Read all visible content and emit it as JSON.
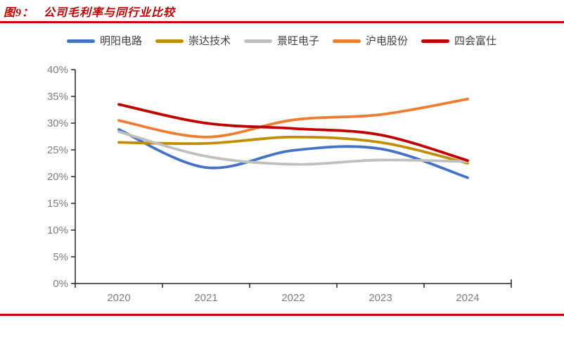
{
  "figure": {
    "label": "图9：",
    "title": "公司毛利率与同行业比较"
  },
  "colors": {
    "accent": "#C00000",
    "axis": "#262626",
    "tick_label": "#7F7F7F",
    "legend_text": "#404040",
    "card_background": "#FFFFFF"
  },
  "chart_data": {
    "type": "line",
    "smooth": true,
    "title": "公司毛利率与同行业比较",
    "categories": [
      "2020",
      "2021",
      "2022",
      "2023",
      "2024"
    ],
    "series": [
      {
        "name": "明阳电路",
        "color": "#4472C4",
        "values": [
          28.8,
          21.7,
          24.9,
          25.2,
          19.8
        ]
      },
      {
        "name": "崇达技术",
        "color": "#BF8F00",
        "values": [
          26.4,
          26.2,
          27.4,
          26.4,
          22.5
        ]
      },
      {
        "name": "景旺电子",
        "color": "#BFBFBF",
        "values": [
          28.4,
          23.8,
          22.3,
          23.1,
          22.8
        ]
      },
      {
        "name": "沪电股份",
        "color": "#ED7D31",
        "values": [
          30.5,
          27.4,
          30.6,
          31.6,
          34.5
        ]
      },
      {
        "name": "四会富仕",
        "color": "#C00000",
        "values": [
          33.5,
          30.0,
          29.0,
          27.8,
          23.0
        ]
      }
    ],
    "xlabel": "",
    "ylabel": "",
    "ylim": [
      0,
      40
    ],
    "ytick_step": 5,
    "ytick_labels": [
      "0%",
      "5%",
      "10%",
      "15%",
      "20%",
      "25%",
      "30%",
      "35%",
      "40%"
    ],
    "legend_position": "top",
    "grid": false
  }
}
